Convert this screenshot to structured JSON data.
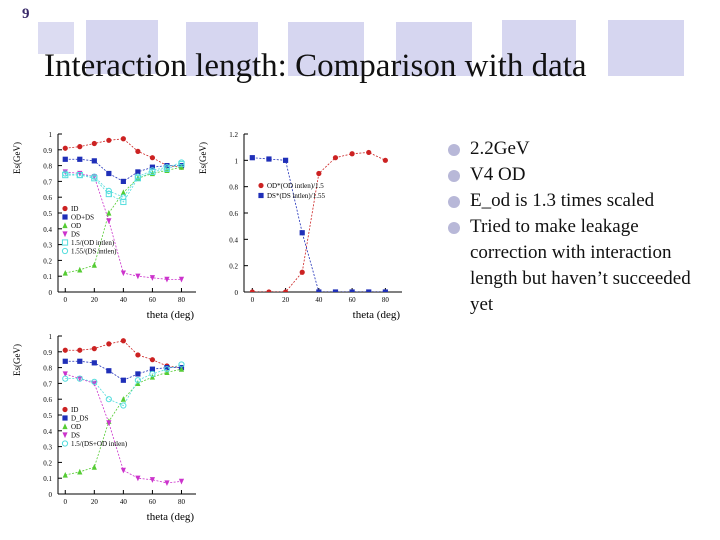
{
  "slide_number": "9",
  "title": "Interaction length: Comparison with data",
  "bullets": [
    "2.2GeV",
    "V4 OD",
    "E_od is 1.3 times scaled",
    "Tried to make leakage correction with interaction length but haven’t succeeded yet"
  ],
  "colors": {
    "title_bar_deco": "#cfcfee",
    "bullet": "#b8b8d8",
    "red": "#cc2222",
    "blue": "#1f2fb8",
    "green": "#55cc33",
    "magenta": "#cc33cc",
    "cyan": "#55dddd"
  },
  "chart_data": [
    {
      "type": "line",
      "ylabel": "Es(GeV)",
      "xlabel": "theta (deg)",
      "xlim": [
        -5,
        90
      ],
      "ylim": [
        0,
        1
      ],
      "x_ticks": [
        "0",
        "20",
        "40",
        "60",
        "80"
      ],
      "y_ticks": [
        "0",
        "0.1",
        "0.2",
        "0.3",
        "0.4",
        "0.5",
        "0.6",
        "0.7",
        "0.8",
        "0.9",
        "1"
      ],
      "legend": [
        "ID",
        "OD+DS",
        "OD",
        "DS",
        "1.5/(OD intlen)",
        "1.55/(DS intlen)"
      ],
      "series": [
        {
          "name": "ID",
          "marker": "circle",
          "color": "red",
          "x": [
            0,
            10,
            20,
            30,
            40,
            50,
            60,
            70,
            80
          ],
          "y": [
            0.91,
            0.92,
            0.94,
            0.96,
            0.97,
            0.89,
            0.85,
            0.8,
            0.79
          ]
        },
        {
          "name": "OD+DS",
          "marker": "square",
          "color": "blue",
          "x": [
            0,
            10,
            20,
            30,
            40,
            50,
            60,
            70,
            80
          ],
          "y": [
            0.84,
            0.84,
            0.83,
            0.75,
            0.7,
            0.76,
            0.79,
            0.8,
            0.8
          ]
        },
        {
          "name": "OD",
          "marker": "triangle-up",
          "color": "green",
          "x": [
            0,
            10,
            20,
            30,
            40,
            50,
            60,
            70,
            80
          ],
          "y": [
            0.12,
            0.14,
            0.17,
            0.5,
            0.63,
            0.72,
            0.75,
            0.77,
            0.79
          ]
        },
        {
          "name": "DS",
          "marker": "triangle-down",
          "color": "magenta",
          "x": [
            0,
            10,
            20,
            30,
            40,
            50,
            60,
            70,
            80
          ],
          "y": [
            0.76,
            0.75,
            0.73,
            0.45,
            0.12,
            0.1,
            0.09,
            0.08,
            0.08
          ]
        },
        {
          "name": "1.5/(OD intlen)",
          "marker": "open-square",
          "color": "cyan",
          "x": [
            0,
            10,
            20,
            30,
            40,
            50,
            60,
            70,
            80
          ],
          "y": [
            0.74,
            0.74,
            0.72,
            0.62,
            0.57,
            0.72,
            0.76,
            0.78,
            0.81
          ]
        },
        {
          "name": "1.55/(DS intlen)",
          "marker": "open-circle",
          "color": "cyan",
          "x": [
            0,
            10,
            20,
            30,
            40,
            50,
            60,
            70,
            80
          ],
          "y": [
            0.75,
            0.74,
            0.73,
            0.64,
            0.6,
            0.73,
            0.77,
            0.79,
            0.82
          ]
        }
      ]
    },
    {
      "type": "line",
      "ylabel": "Es(GeV)",
      "xlabel": "theta (deg)",
      "xlim": [
        -5,
        90
      ],
      "ylim": [
        0,
        1.2
      ],
      "x_ticks": [
        "0",
        "20",
        "40",
        "60",
        "80"
      ],
      "y_ticks": [
        "0",
        "0.2",
        "0.4",
        "0.6",
        "0.8",
        "1",
        "1.2"
      ],
      "legend": [
        "OD*(OD intlen)/1.5",
        "DS*(DS intlen)/1.55"
      ],
      "series": [
        {
          "name": "OD*(OD intlen)/1.5",
          "marker": "circle",
          "color": "red",
          "x": [
            0,
            10,
            20,
            30,
            40,
            50,
            60,
            70,
            80
          ],
          "y": [
            0.0,
            0.0,
            0.0,
            0.15,
            0.9,
            1.02,
            1.05,
            1.06,
            1.0
          ]
        },
        {
          "name": "DS*(DS intlen)/1.55",
          "marker": "square",
          "color": "blue",
          "x": [
            0,
            10,
            20,
            30,
            40,
            50,
            60,
            70,
            80
          ],
          "y": [
            1.02,
            1.01,
            1.0,
            0.45,
            0.0,
            0.0,
            0.0,
            0.0,
            0.0
          ]
        }
      ]
    },
    {
      "type": "line",
      "ylabel": "Es(GeV)",
      "xlabel": "theta (deg)",
      "xlim": [
        -5,
        90
      ],
      "ylim": [
        0,
        1
      ],
      "x_ticks": [
        "0",
        "20",
        "40",
        "60",
        "80"
      ],
      "y_ticks": [
        "0",
        "0.1",
        "0.2",
        "0.3",
        "0.4",
        "0.5",
        "0.6",
        "0.7",
        "0.8",
        "0.9",
        "1"
      ],
      "legend": [
        "ID",
        "D_DS",
        "OD",
        "DS",
        "1.5/(DS+OD intlen)"
      ],
      "series": [
        {
          "name": "ID",
          "marker": "circle",
          "color": "red",
          "x": [
            0,
            10,
            20,
            30,
            40,
            50,
            60,
            70,
            80
          ],
          "y": [
            0.91,
            0.91,
            0.92,
            0.95,
            0.97,
            0.88,
            0.85,
            0.81,
            0.8
          ]
        },
        {
          "name": "D_DS",
          "marker": "square",
          "color": "blue",
          "x": [
            0,
            10,
            20,
            30,
            40,
            50,
            60,
            70,
            80
          ],
          "y": [
            0.84,
            0.84,
            0.83,
            0.78,
            0.72,
            0.76,
            0.79,
            0.8,
            0.8
          ]
        },
        {
          "name": "OD",
          "marker": "triangle-up",
          "color": "green",
          "x": [
            0,
            10,
            20,
            30,
            40,
            50,
            60,
            70,
            80
          ],
          "y": [
            0.12,
            0.14,
            0.17,
            0.46,
            0.6,
            0.7,
            0.74,
            0.77,
            0.79
          ]
        },
        {
          "name": "DS",
          "marker": "triangle-down",
          "color": "magenta",
          "x": [
            0,
            10,
            20,
            30,
            40,
            50,
            60,
            70,
            80
          ],
          "y": [
            0.76,
            0.73,
            0.7,
            0.45,
            0.15,
            0.1,
            0.09,
            0.07,
            0.08
          ]
        },
        {
          "name": "1.5/(DS+OD intlen)",
          "marker": "open-circle",
          "color": "cyan",
          "x": [
            0,
            10,
            20,
            30,
            40,
            50,
            60,
            70,
            80
          ],
          "y": [
            0.73,
            0.73,
            0.71,
            0.6,
            0.56,
            0.72,
            0.76,
            0.79,
            0.82
          ]
        }
      ]
    }
  ]
}
